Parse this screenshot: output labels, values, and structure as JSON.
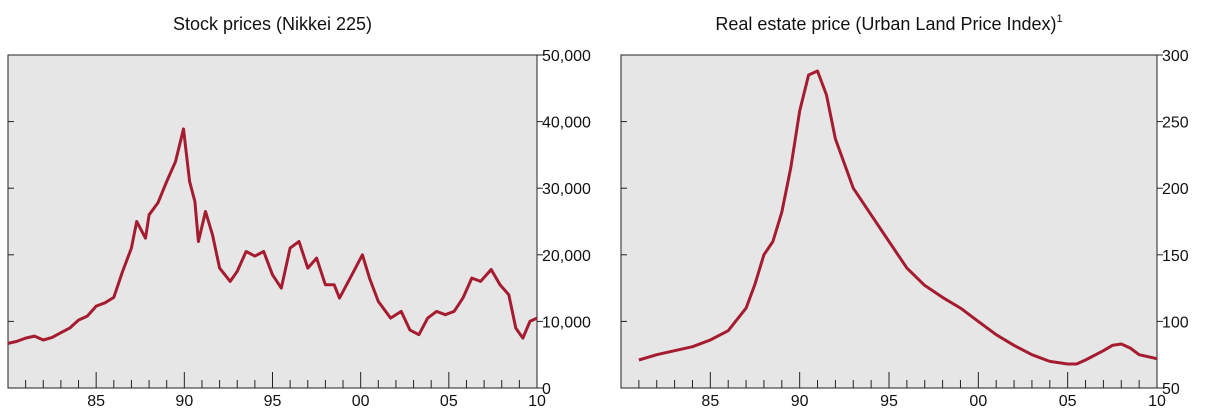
{
  "chart_data": [
    {
      "type": "line",
      "title": "Stock prices (Nikkei 225)",
      "x": [
        1980,
        1980.5,
        1981,
        1981.5,
        1982,
        1982.5,
        1983,
        1983.5,
        1984,
        1984.5,
        1985,
        1985.5,
        1986,
        1986.5,
        1987,
        1987.3,
        1987.8,
        1988,
        1988.5,
        1989,
        1989.5,
        1989.95,
        1990.3,
        1990.6,
        1990.8,
        1991.2,
        1991.6,
        1992,
        1992.6,
        1993,
        1993.5,
        1994,
        1994.5,
        1995,
        1995.5,
        1996,
        1996.5,
        1997,
        1997.5,
        1998,
        1998.5,
        1998.8,
        1999.5,
        2000.1,
        2000.5,
        2001,
        2001.7,
        2002.3,
        2002.8,
        2003.3,
        2003.8,
        2004.3,
        2004.8,
        2005.3,
        2005.8,
        2006.3,
        2006.8,
        2007.4,
        2007.9,
        2008.4,
        2008.8,
        2009.2,
        2009.6,
        2010
      ],
      "values": [
        6700,
        7000,
        7500,
        7800,
        7200,
        7600,
        8300,
        9000,
        10200,
        10800,
        12300,
        12800,
        13600,
        17500,
        21000,
        25000,
        22500,
        26000,
        27800,
        31000,
        34000,
        38900,
        31000,
        28000,
        22000,
        26500,
        23000,
        18000,
        16000,
        17500,
        20500,
        19800,
        20500,
        17000,
        15000,
        21000,
        22000,
        18000,
        19500,
        15500,
        15500,
        13500,
        17000,
        20000,
        16500,
        13000,
        10500,
        11500,
        8700,
        8000,
        10500,
        11500,
        11000,
        11500,
        13500,
        16500,
        16000,
        17800,
        15500,
        14000,
        9000,
        7500,
        10000,
        10500
      ],
      "color": "#a51c30",
      "xlim": [
        1980,
        2010
      ],
      "xticks": [
        {
          "value": 1985,
          "label": "85"
        },
        {
          "value": 1990,
          "label": "90"
        },
        {
          "value": 1995,
          "label": "95"
        },
        {
          "value": 2000,
          "label": "00"
        },
        {
          "value": 2005,
          "label": "05"
        },
        {
          "value": 2010,
          "label": "10"
        }
      ],
      "xminor_ticks": [
        1981,
        1982,
        1983,
        1984,
        1986,
        1987,
        1988,
        1989,
        1991,
        1992,
        1993,
        1994,
        1996,
        1997,
        1998,
        1999,
        2001,
        2002,
        2003,
        2004,
        2006,
        2007,
        2008,
        2009
      ],
      "ylim": [
        0,
        50000
      ],
      "yticks": [
        0,
        {
          "value": 10000,
          "label": "10,000"
        },
        {
          "value": 20000,
          "label": "20,000"
        },
        {
          "value": 30000,
          "label": "30,000"
        },
        {
          "value": 40000,
          "label": "40,000"
        },
        {
          "value": 50000,
          "label": "50,000"
        }
      ]
    },
    {
      "type": "line",
      "title": "Real estate price (Urban Land Price Index)",
      "title_note": "1",
      "x": [
        1981,
        1982,
        1983,
        1984,
        1985,
        1986,
        1987,
        1987.5,
        1988,
        1988.5,
        1989,
        1989.5,
        1990,
        1990.5,
        1991,
        1991.5,
        1992,
        1993,
        1994,
        1995,
        1996,
        1997,
        1998,
        1999,
        2000,
        2001,
        2002,
        2003,
        2004,
        2005,
        2005.5,
        2006,
        2007,
        2007.5,
        2008,
        2008.5,
        2009,
        2010
      ],
      "values": [
        71,
        75,
        78,
        81,
        86,
        93,
        110,
        128,
        150,
        160,
        182,
        215,
        258,
        285,
        288,
        270,
        237,
        200,
        180,
        160,
        140,
        127,
        118,
        110,
        100,
        90,
        82,
        75,
        70,
        68,
        68,
        71,
        78,
        82,
        83,
        80,
        75,
        72
      ],
      "color": "#a51c30",
      "xlim": [
        1980,
        2010
      ],
      "xticks": [
        {
          "value": 1985,
          "label": "85"
        },
        {
          "value": 1990,
          "label": "90"
        },
        {
          "value": 1995,
          "label": "95"
        },
        {
          "value": 2000,
          "label": "00"
        },
        {
          "value": 2005,
          "label": "05"
        },
        {
          "value": 2010,
          "label": "10"
        }
      ],
      "xminor_ticks": [
        1981,
        1982,
        1983,
        1984,
        1986,
        1987,
        1988,
        1989,
        1991,
        1992,
        1993,
        1994,
        1996,
        1997,
        1998,
        1999,
        2001,
        2002,
        2003,
        2004,
        2006,
        2007,
        2008,
        2009
      ],
      "ylim": [
        50,
        300
      ],
      "yticks": [
        50,
        100,
        150,
        200,
        250,
        300
      ]
    }
  ]
}
